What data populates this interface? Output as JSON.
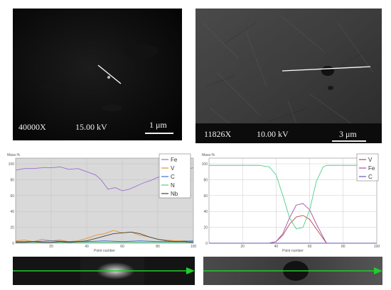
{
  "figure": {
    "colors": {
      "fe": "#9b6fcf",
      "v": "#e8912b",
      "c": "#3b6fd8",
      "n": "#4fcf8a",
      "nb": "#444444",
      "v_right": "#b84545",
      "fe_right": "#a64ca6",
      "c_right": "#5a5ab8",
      "marker": "#1fcf2a",
      "line": "#ffffff"
    },
    "sem_left": {
      "magnification": "40000X",
      "voltage": "15.00 kV",
      "scale": "1 μm"
    },
    "sem_right": {
      "magnification": "11826X",
      "voltage": "10.00 kV",
      "scale": "3 μm"
    }
  },
  "chart_data": [
    {
      "type": "line",
      "title": "",
      "ylabel": "Mass-%",
      "xlabel": "Point number",
      "xlim": [
        0,
        100
      ],
      "ylim": [
        0,
        100
      ],
      "x_ticks": [
        20,
        40,
        60,
        80,
        100
      ],
      "y_ticks": [
        0,
        20,
        40,
        60,
        80,
        100
      ],
      "grid": true,
      "legend_position": "right",
      "series": [
        {
          "name": "Fe",
          "x": [
            0,
            5,
            10,
            15,
            20,
            25,
            30,
            35,
            40,
            45,
            48,
            52,
            56,
            60,
            64,
            68,
            72,
            76,
            80,
            84,
            88,
            92,
            96,
            100
          ],
          "y": [
            92,
            94,
            94,
            95,
            95,
            96,
            93,
            94,
            90,
            86,
            80,
            68,
            70,
            66,
            68,
            72,
            76,
            79,
            83,
            85,
            88,
            90,
            93,
            95
          ]
        },
        {
          "name": "V",
          "x": [
            0,
            5,
            10,
            15,
            20,
            25,
            30,
            35,
            40,
            45,
            50,
            55,
            60,
            65,
            70,
            75,
            80,
            85,
            90,
            95,
            100
          ],
          "y": [
            3,
            4,
            2,
            5,
            3,
            4,
            2,
            3,
            6,
            10,
            12,
            16,
            13,
            14,
            10,
            8,
            5,
            4,
            3,
            3,
            2
          ]
        },
        {
          "name": "C",
          "x": [
            0,
            10,
            20,
            30,
            40,
            50,
            60,
            70,
            80,
            90,
            100
          ],
          "y": [
            2,
            2,
            3,
            2,
            2,
            3,
            2,
            3,
            2,
            2,
            3
          ]
        },
        {
          "name": "N",
          "x": [
            0,
            20,
            40,
            60,
            80,
            100
          ],
          "y": [
            1,
            1,
            1,
            1,
            1,
            1
          ]
        },
        {
          "name": "Nb",
          "x": [
            0,
            5,
            10,
            15,
            20,
            25,
            30,
            35,
            40,
            45,
            50,
            55,
            60,
            65,
            70,
            75,
            80,
            85,
            90,
            95,
            100
          ],
          "y": [
            1,
            1,
            2,
            1,
            1,
            2,
            1,
            2,
            3,
            6,
            9,
            12,
            13,
            14,
            12,
            8,
            5,
            3,
            2,
            2,
            1
          ]
        }
      ]
    },
    {
      "type": "line",
      "title": "",
      "ylabel": "Mass-%",
      "xlabel": "Point number",
      "xlim": [
        0,
        100
      ],
      "ylim": [
        0,
        100
      ],
      "x_ticks": [
        20,
        40,
        60,
        80,
        100
      ],
      "y_ticks": [
        0,
        20,
        40,
        60,
        80,
        100
      ],
      "grid": true,
      "legend_position": "top-right",
      "series": [
        {
          "name": "V",
          "x": [
            0,
            10,
            20,
            30,
            36,
            40,
            44,
            48,
            52,
            56,
            60,
            64,
            68,
            70,
            80,
            90,
            100
          ],
          "y": [
            0,
            0,
            0,
            0,
            0,
            2,
            10,
            24,
            33,
            35,
            30,
            18,
            6,
            0,
            0,
            0,
            0
          ]
        },
        {
          "name": "Fe",
          "x": [
            0,
            10,
            20,
            30,
            36,
            40,
            44,
            48,
            52,
            56,
            60,
            64,
            68,
            70,
            80,
            90,
            100
          ],
          "y": [
            0,
            0,
            0,
            0,
            0,
            2,
            12,
            32,
            48,
            50,
            42,
            24,
            8,
            0,
            0,
            0,
            0
          ]
        },
        {
          "name": "C",
          "x": [
            0,
            10,
            20,
            30,
            36,
            40,
            44,
            48,
            52,
            56,
            60,
            64,
            68,
            70,
            80,
            90,
            100
          ],
          "y": [
            0,
            0,
            0,
            0,
            0,
            0,
            0,
            0,
            0,
            0,
            0,
            0,
            0,
            0,
            0,
            0,
            0
          ]
        },
        {
          "name": "",
          "x": [
            0,
            10,
            20,
            30,
            36,
            40,
            44,
            48,
            52,
            56,
            60,
            64,
            68,
            70,
            80,
            90,
            100
          ],
          "y": [
            98,
            98,
            98,
            98,
            96,
            86,
            60,
            32,
            18,
            20,
            42,
            78,
            96,
            98,
            98,
            98,
            98
          ]
        }
      ]
    }
  ]
}
